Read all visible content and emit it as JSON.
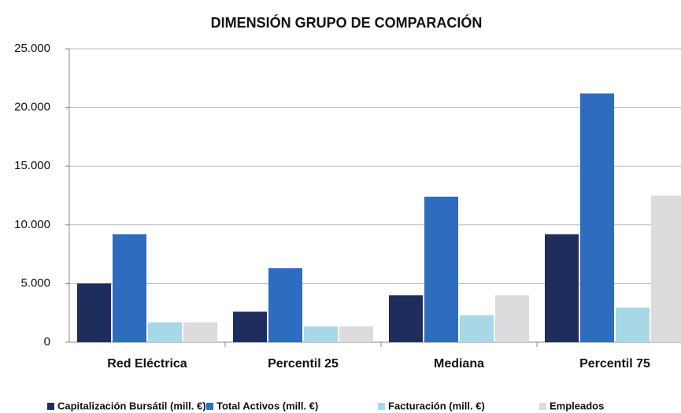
{
  "chart_data": {
    "type": "bar",
    "title": "DIMENSIÓN GRUPO DE COMPARACIÓN",
    "categories": [
      "Red Eléctrica",
      "Percentil 25",
      "Mediana",
      "Percentil 75"
    ],
    "series": [
      {
        "name": "Capitalización Bursátil (mill. €)",
        "color": "#1f2d5c",
        "values": [
          5000,
          2600,
          4000,
          9200
        ]
      },
      {
        "name": "Total Activos (mill. €)",
        "color": "#2e6cc0",
        "values": [
          9200,
          6300,
          12400,
          21200
        ]
      },
      {
        "name": "Facturación (mill. €)",
        "color": "#a8d8e8",
        "values": [
          1700,
          1350,
          2300,
          2950
        ]
      },
      {
        "name": "Empleados",
        "color": "#dcdcde",
        "values": [
          1700,
          1350,
          4000,
          12500
        ]
      }
    ],
    "ylim": [
      0,
      25000
    ],
    "yticks": [
      0,
      {
        "value": 5000,
        "label": "5.000"
      },
      {
        "value": 10000,
        "label": "10.000"
      },
      {
        "value": 15000,
        "label": "15.000"
      },
      {
        "value": 20000,
        "label": "20.000"
      },
      {
        "value": 25000,
        "label": "25.000"
      }
    ],
    "grid": true,
    "legend": "bottom"
  }
}
